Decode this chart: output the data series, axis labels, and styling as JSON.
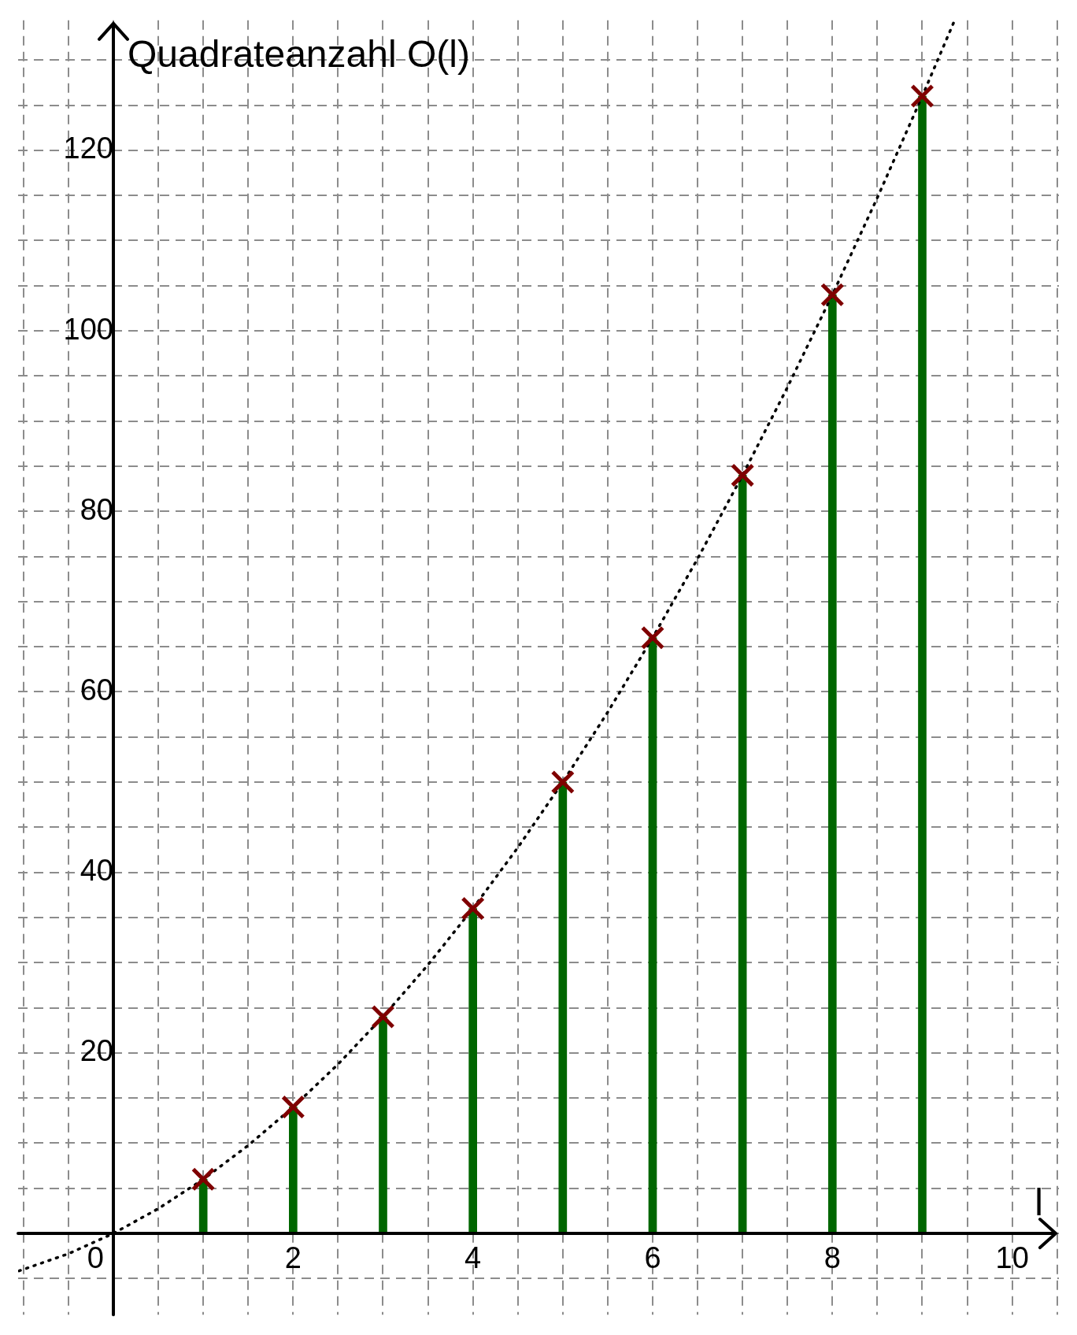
{
  "chart_data": {
    "type": "bar",
    "xlabel": "l",
    "ylabel": "Quadrateanzahl O(l)",
    "x": [
      1,
      2,
      3,
      4,
      5,
      6,
      7,
      8,
      9
    ],
    "series": [
      {
        "color": "#006600",
        "values": [
          6,
          14,
          24,
          36,
          50,
          66,
          84,
          104,
          126
        ]
      },
      {
        "type": "scatter",
        "color": "#7f0000",
        "marker": "cross",
        "values": [
          6,
          14,
          24,
          36,
          50,
          66,
          84,
          104,
          126
        ]
      },
      {
        "type": "line",
        "color": "#000000",
        "line_style": "dotted",
        "marker": "none",
        "x": [
          -1.05,
          -0.5,
          0,
          0.5,
          1,
          1.5,
          2,
          2.5,
          3,
          3.5,
          4,
          4.5,
          5,
          5.5,
          6,
          6.5,
          7,
          7.5,
          8,
          8.5,
          9,
          9.35
        ],
        "values": [
          -4.15,
          -2.25,
          0,
          2.75,
          6,
          9.75,
          14,
          18.75,
          24,
          29.75,
          36,
          42.75,
          50,
          57.75,
          66,
          74.75,
          84,
          93.75,
          104,
          114.75,
          126,
          134.17
        ]
      }
    ],
    "xlim": [
      -1.06,
      10.52
    ],
    "ylim": [
      -9,
      134.4
    ],
    "xticks": [
      {
        "value": -1,
        "label": null
      },
      {
        "value": -0.5,
        "label": null
      },
      0,
      {
        "value": 0.5,
        "label": null
      },
      {
        "value": 1,
        "label": null
      },
      {
        "value": 1.5,
        "label": null
      },
      2,
      {
        "value": 2.5,
        "label": null
      },
      {
        "value": 3,
        "label": null
      },
      {
        "value": 3.5,
        "label": null
      },
      4,
      {
        "value": 4.5,
        "label": null
      },
      {
        "value": 5,
        "label": null
      },
      {
        "value": 5.5,
        "label": null
      },
      6,
      {
        "value": 6.5,
        "label": null
      },
      {
        "value": 7,
        "label": null
      },
      {
        "value": 7.5,
        "label": null
      },
      8,
      {
        "value": 8.5,
        "label": null
      },
      {
        "value": 9,
        "label": null
      },
      {
        "value": 9.5,
        "label": null
      },
      10,
      {
        "value": 10.5,
        "label": null
      }
    ],
    "yticks": [
      {
        "value": -5,
        "label": null
      },
      {
        "value": 0,
        "label": null
      },
      {
        "value": 5,
        "label": null
      },
      {
        "value": 10,
        "label": null
      },
      {
        "value": 15,
        "label": null
      },
      20,
      {
        "value": 25,
        "label": null
      },
      {
        "value": 30,
        "label": null
      },
      {
        "value": 35,
        "label": null
      },
      40,
      {
        "value": 45,
        "label": null
      },
      {
        "value": 50,
        "label": null
      },
      {
        "value": 55,
        "label": null
      },
      60,
      {
        "value": 65,
        "label": null
      },
      {
        "value": 70,
        "label": null
      },
      {
        "value": 75,
        "label": null
      },
      80,
      {
        "value": 85,
        "label": null
      },
      {
        "value": 90,
        "label": null
      },
      {
        "value": 95,
        "label": null
      },
      100,
      {
        "value": 105,
        "label": null
      },
      {
        "value": 110,
        "label": null
      },
      {
        "value": 115,
        "label": null
      },
      120,
      {
        "value": 125,
        "label": null
      },
      {
        "value": 130,
        "label": null
      }
    ],
    "grid": true,
    "legend": false
  }
}
